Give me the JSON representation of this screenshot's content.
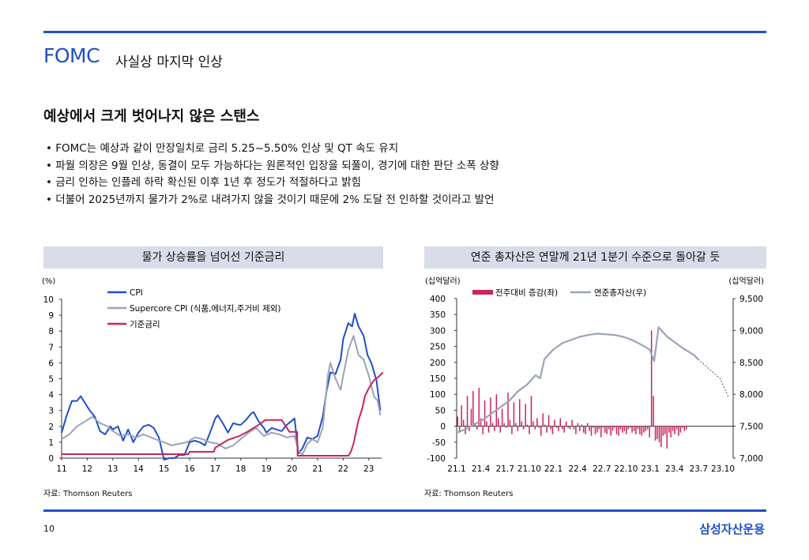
{
  "header": {
    "title": "FOMC",
    "subtitle": "사실상 마지막 인상"
  },
  "section_title": "예상에서 크게 벗어나지 않은 스탠스",
  "bullets": [
    "FOMC는 예상과 같이 만장일치로 금리 5.25~5.50% 인상 및 QT 속도 유지",
    "파월 의장은 9월 인상, 동결이 모두 가능하다는 원론적인 입장을 되풀이, 경기에 대한 판단 소폭 상향",
    "금리 인하는 인플레 하락 확신된 이후 1년 후 정도가 적절하다고 밝힘",
    "더불어 2025년까지 물가가 2%로 내려가지 않을 것이기 때문에 2% 도달 전 인하할 것이라고 발언"
  ],
  "colors": {
    "accent": "#1f4fc8",
    "cpi": "#1f4fc8",
    "supercore": "#9aa3b8",
    "rate": "#c8245e",
    "bars": "#c8245e",
    "balance": "#9aa3b8",
    "panel_bg": "#d9dde9"
  },
  "footer": {
    "page": "10",
    "brand": "삼성자산운용"
  },
  "chart_data": [
    {
      "type": "line",
      "title": "물가 상승률을 넘어선 기준금리",
      "unit_label": "(%)",
      "ylim": [
        0,
        10
      ],
      "yticks": [
        "0",
        "1",
        "2",
        "3",
        "4",
        "5",
        "6",
        "7",
        "8",
        "9",
        "10"
      ],
      "xlim": [
        11,
        23.5
      ],
      "xticks": [
        "11",
        "12",
        "13",
        "14",
        "15",
        "16",
        "17",
        "18",
        "19",
        "20",
        "21",
        "22",
        "23"
      ],
      "source": "자료: Thomson Reuters",
      "series": [
        {
          "name": "CPI",
          "points": [
            [
              11.0,
              1.6
            ],
            [
              11.2,
              2.7
            ],
            [
              11.4,
              3.6
            ],
            [
              11.6,
              3.6
            ],
            [
              11.75,
              3.9
            ],
            [
              11.9,
              3.5
            ],
            [
              12.1,
              3.0
            ],
            [
              12.3,
              2.6
            ],
            [
              12.5,
              1.7
            ],
            [
              12.7,
              1.5
            ],
            [
              12.9,
              2.0
            ],
            [
              13.0,
              1.8
            ],
            [
              13.2,
              2.0
            ],
            [
              13.4,
              1.1
            ],
            [
              13.6,
              1.8
            ],
            [
              13.8,
              1.0
            ],
            [
              14.0,
              1.6
            ],
            [
              14.2,
              2.0
            ],
            [
              14.4,
              2.1
            ],
            [
              14.6,
              1.9
            ],
            [
              14.8,
              1.3
            ],
            [
              15.0,
              -0.1
            ],
            [
              15.2,
              0.0
            ],
            [
              15.4,
              0.0
            ],
            [
              15.6,
              0.2
            ],
            [
              15.8,
              0.2
            ],
            [
              16.0,
              1.0
            ],
            [
              16.2,
              1.1
            ],
            [
              16.4,
              1.0
            ],
            [
              16.6,
              0.8
            ],
            [
              16.8,
              1.6
            ],
            [
              17.0,
              2.5
            ],
            [
              17.1,
              2.7
            ],
            [
              17.3,
              2.2
            ],
            [
              17.5,
              1.6
            ],
            [
              17.7,
              2.2
            ],
            [
              17.9,
              2.1
            ],
            [
              18.0,
              2.1
            ],
            [
              18.2,
              2.4
            ],
            [
              18.4,
              2.8
            ],
            [
              18.5,
              2.9
            ],
            [
              18.7,
              2.3
            ],
            [
              18.9,
              1.9
            ],
            [
              19.0,
              1.6
            ],
            [
              19.2,
              1.9
            ],
            [
              19.4,
              1.8
            ],
            [
              19.6,
              1.7
            ],
            [
              19.8,
              2.1
            ],
            [
              19.95,
              2.3
            ],
            [
              20.1,
              2.5
            ],
            [
              20.25,
              0.3
            ],
            [
              20.4,
              0.6
            ],
            [
              20.6,
              1.3
            ],
            [
              20.8,
              1.2
            ],
            [
              21.0,
              1.4
            ],
            [
              21.2,
              2.6
            ],
            [
              21.35,
              4.2
            ],
            [
              21.5,
              5.4
            ],
            [
              21.7,
              5.3
            ],
            [
              21.9,
              6.2
            ],
            [
              22.0,
              7.5
            ],
            [
              22.2,
              8.5
            ],
            [
              22.35,
              8.3
            ],
            [
              22.45,
              9.1
            ],
            [
              22.6,
              8.3
            ],
            [
              22.8,
              7.7
            ],
            [
              22.95,
              6.5
            ],
            [
              23.1,
              6.0
            ],
            [
              23.3,
              4.9
            ],
            [
              23.45,
              3.0
            ]
          ]
        },
        {
          "name": "Supercore CPI (식품,에너지,주거비 제외)",
          "points": [
            [
              11.0,
              1.2
            ],
            [
              11.3,
              1.5
            ],
            [
              11.6,
              2.0
            ],
            [
              11.9,
              2.3
            ],
            [
              12.2,
              2.6
            ],
            [
              12.5,
              2.2
            ],
            [
              12.8,
              2.0
            ],
            [
              13.0,
              1.7
            ],
            [
              13.3,
              1.4
            ],
            [
              13.6,
              1.5
            ],
            [
              13.9,
              1.3
            ],
            [
              14.2,
              1.5
            ],
            [
              14.5,
              1.3
            ],
            [
              14.8,
              1.1
            ],
            [
              15.0,
              1.0
            ],
            [
              15.3,
              0.8
            ],
            [
              15.6,
              0.9
            ],
            [
              15.9,
              1.0
            ],
            [
              16.2,
              1.3
            ],
            [
              16.5,
              1.2
            ],
            [
              16.8,
              1.0
            ],
            [
              17.1,
              0.9
            ],
            [
              17.4,
              0.6
            ],
            [
              17.7,
              0.8
            ],
            [
              18.0,
              1.2
            ],
            [
              18.3,
              1.6
            ],
            [
              18.6,
              1.9
            ],
            [
              18.9,
              1.4
            ],
            [
              19.2,
              1.6
            ],
            [
              19.5,
              1.5
            ],
            [
              19.8,
              1.3
            ],
            [
              20.1,
              1.4
            ],
            [
              20.25,
              0.5
            ],
            [
              20.4,
              0.2
            ],
            [
              20.6,
              0.9
            ],
            [
              20.8,
              1.2
            ],
            [
              21.0,
              1.0
            ],
            [
              21.2,
              1.9
            ],
            [
              21.4,
              5.2
            ],
            [
              21.5,
              6.0
            ],
            [
              21.7,
              5.0
            ],
            [
              21.9,
              4.3
            ],
            [
              22.0,
              5.2
            ],
            [
              22.2,
              6.8
            ],
            [
              22.4,
              7.7
            ],
            [
              22.6,
              6.5
            ],
            [
              22.8,
              6.2
            ],
            [
              23.0,
              5.2
            ],
            [
              23.2,
              3.9
            ],
            [
              23.35,
              3.6
            ],
            [
              23.45,
              2.7
            ]
          ]
        },
        {
          "name": "기준금리",
          "points": [
            [
              11.0,
              0.25
            ],
            [
              15.95,
              0.25
            ],
            [
              16.0,
              0.4
            ],
            [
              16.95,
              0.4
            ],
            [
              17.0,
              0.65
            ],
            [
              17.25,
              0.9
            ],
            [
              17.5,
              1.15
            ],
            [
              17.95,
              1.4
            ],
            [
              18.25,
              1.65
            ],
            [
              18.5,
              1.9
            ],
            [
              18.75,
              2.15
            ],
            [
              18.95,
              2.4
            ],
            [
              19.6,
              2.4
            ],
            [
              19.7,
              2.15
            ],
            [
              19.8,
              1.9
            ],
            [
              19.9,
              1.65
            ],
            [
              20.2,
              1.65
            ],
            [
              20.22,
              0.15
            ],
            [
              22.2,
              0.15
            ],
            [
              22.3,
              0.4
            ],
            [
              22.4,
              0.9
            ],
            [
              22.5,
              1.65
            ],
            [
              22.6,
              2.4
            ],
            [
              22.75,
              3.15
            ],
            [
              22.85,
              3.9
            ],
            [
              23.0,
              4.4
            ],
            [
              23.1,
              4.65
            ],
            [
              23.2,
              4.9
            ],
            [
              23.4,
              5.15
            ],
            [
              23.55,
              5.4
            ]
          ]
        }
      ]
    },
    {
      "type": "bar",
      "title": "연준 총자산은 연말께 21년 1분기 수준으로 돌아갈 듯",
      "left_unit": "(십억달러)",
      "right_unit": "(십억달러)",
      "ylim_left": [
        -100,
        400
      ],
      "yticks_left": [
        "-100",
        "-50",
        "0",
        "50",
        "100",
        "150",
        "200",
        "250",
        "300",
        "350",
        "400"
      ],
      "ylim_right": [
        7000,
        9500
      ],
      "yticks_right": [
        "7,000",
        "7,500",
        "8,000",
        "8,500",
        "9,000",
        "9,500"
      ],
      "xticks": [
        "21.1",
        "21.4",
        "21.7",
        "21.10",
        "22.1",
        "22.4",
        "22.7",
        "22.10",
        "23.1",
        "23.4",
        "23.7",
        "23.10"
      ],
      "source": "자료: Thomson Reuters",
      "bar_series": {
        "name": "전주대비 증감(좌)",
        "values": [
          30,
          -20,
          65,
          20,
          -25,
          95,
          -15,
          55,
          110,
          10,
          -10,
          120,
          25,
          -25,
          80,
          15,
          -20,
          90,
          10,
          -15,
          100,
          25,
          -20,
          55,
          10,
          -5,
          105,
          20,
          -25,
          75,
          10,
          -15,
          85,
          15,
          -10,
          70,
          5,
          -25,
          95,
          15,
          -10,
          25,
          -5,
          -30,
          40,
          5,
          -20,
          35,
          -10,
          -25,
          20,
          -5,
          -15,
          25,
          -10,
          -20,
          15,
          -5,
          -10,
          20,
          -10,
          -25,
          10,
          -15,
          5,
          -20,
          -25,
          10,
          -15,
          -30,
          -5,
          -25,
          -20,
          -10,
          -35,
          -5,
          -20,
          -25,
          -10,
          -30,
          -15,
          -5,
          -25,
          -30,
          -10,
          -20,
          -15,
          -25,
          -10,
          -5,
          -20,
          -15,
          -25,
          -10,
          -25,
          -30,
          -20,
          -15,
          -10,
          -35,
          300,
          95,
          -45,
          -40,
          -50,
          -65,
          -30,
          -25,
          -70,
          -20,
          -35,
          -15,
          -25,
          -10,
          -30,
          -20,
          -5,
          -15,
          -10
        ]
      },
      "line_series": {
        "name": "연준총자산(우)",
        "points": [
          [
            21.0,
            7400
          ],
          [
            21.1,
            7450
          ],
          [
            21.2,
            7530
          ],
          [
            21.3,
            7600
          ],
          [
            21.4,
            7700
          ],
          [
            21.5,
            7800
          ],
          [
            21.6,
            7900
          ],
          [
            21.7,
            8050
          ],
          [
            21.8,
            8150
          ],
          [
            21.9,
            8300
          ],
          [
            21.95,
            8250
          ],
          [
            22.0,
            8550
          ],
          [
            22.1,
            8700
          ],
          [
            22.2,
            8800
          ],
          [
            22.3,
            8850
          ],
          [
            22.4,
            8900
          ],
          [
            22.5,
            8930
          ],
          [
            22.6,
            8950
          ],
          [
            22.7,
            8940
          ],
          [
            22.8,
            8930
          ],
          [
            22.9,
            8900
          ],
          [
            23.0,
            8850
          ],
          [
            23.1,
            8780
          ],
          [
            23.2,
            8700
          ],
          [
            23.25,
            8520
          ],
          [
            23.3,
            9050
          ],
          [
            23.4,
            8900
          ],
          [
            23.5,
            8800
          ],
          [
            23.6,
            8700
          ],
          [
            23.7,
            8620
          ],
          [
            23.75,
            8550
          ],
          [
            24.0,
            8250
          ],
          [
            24.1,
            7950
          ]
        ],
        "projection_from": 23.75
      }
    }
  ]
}
